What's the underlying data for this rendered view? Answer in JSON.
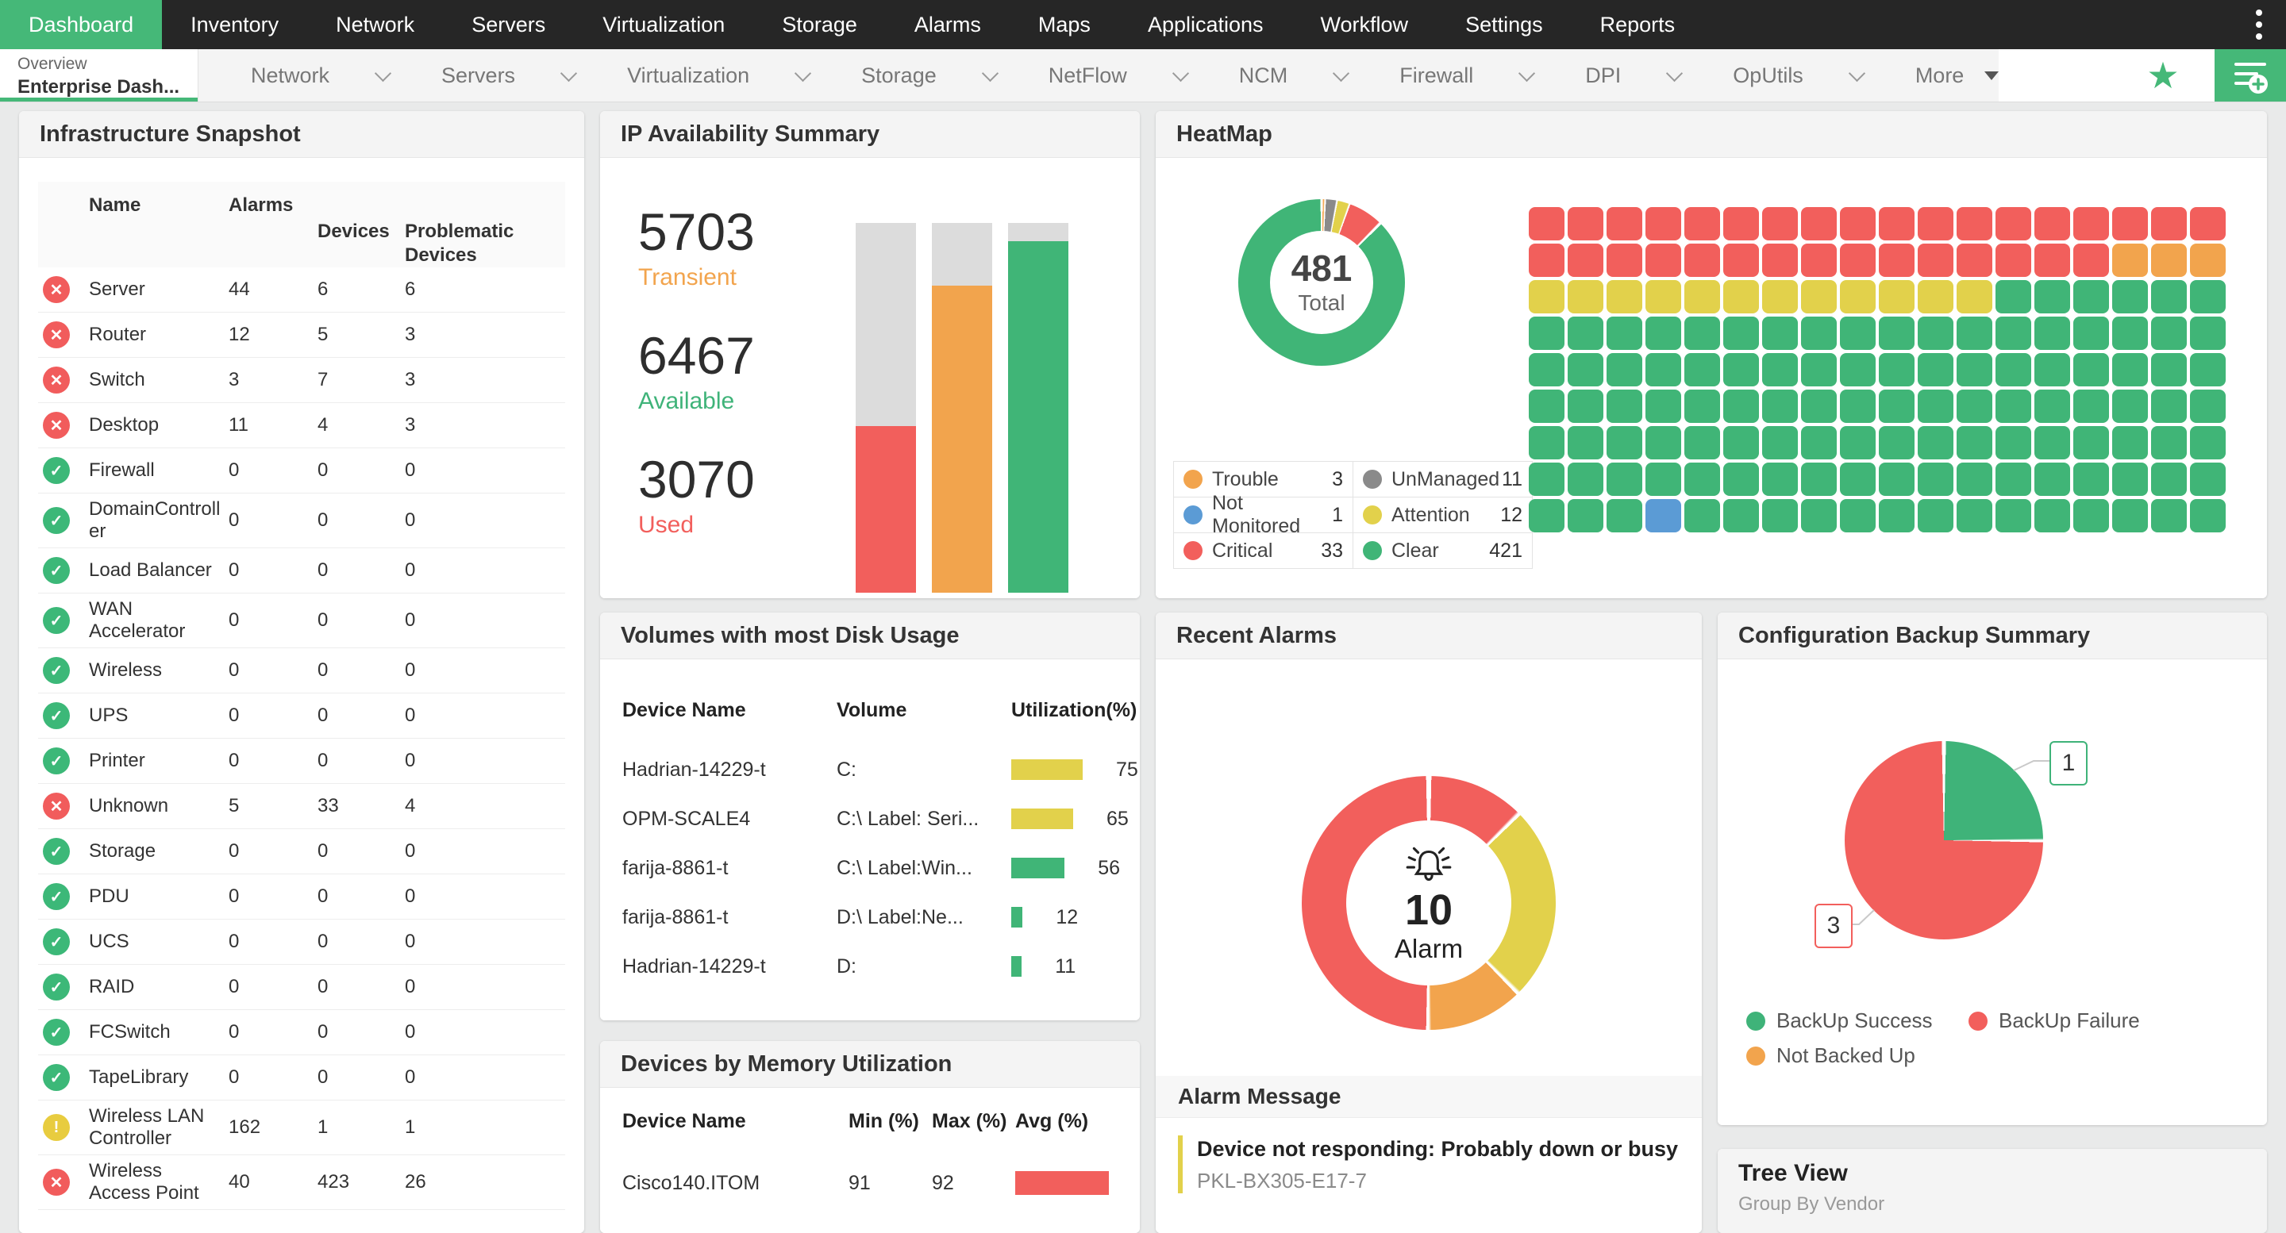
{
  "topnav": {
    "items": [
      {
        "label": "Dashboard",
        "active": true
      },
      {
        "label": "Inventory",
        "active": false
      },
      {
        "label": "Network",
        "active": false
      },
      {
        "label": "Servers",
        "active": false
      },
      {
        "label": "Virtualization",
        "active": false
      },
      {
        "label": "Storage",
        "active": false
      },
      {
        "label": "Alarms",
        "active": false
      },
      {
        "label": "Maps",
        "active": false
      },
      {
        "label": "Applications",
        "active": false
      },
      {
        "label": "Workflow",
        "active": false
      },
      {
        "label": "Settings",
        "active": false
      },
      {
        "label": "Reports",
        "active": false
      }
    ]
  },
  "tabbar": {
    "active_tab": {
      "line1": "Overview",
      "line2": "Enterprise Dash..."
    },
    "tabs": [
      "Network",
      "Servers",
      "Virtualization",
      "Storage",
      "NetFlow",
      "NCM",
      "Firewall",
      "DPI",
      "OpUtils"
    ],
    "more_label": "More",
    "star_color": "#45B878"
  },
  "widgets": {
    "infrastructure": {
      "title": "Infrastructure Snapshot",
      "columns": {
        "name": "Name",
        "alarms": "Alarms",
        "devices": "Devices",
        "problematic": "Problematic Devices"
      },
      "status_colors": {
        "critical": "#F15C5C",
        "clear": "#3CB878",
        "attention": "#E8CC3F"
      },
      "status_glyphs": {
        "critical": "✕",
        "clear": "✓",
        "attention": "!"
      },
      "rows": [
        {
          "status": "critical",
          "name": "Server",
          "alarms": "44",
          "devices": "6",
          "problematic": "6"
        },
        {
          "status": "critical",
          "name": "Router",
          "alarms": "12",
          "devices": "5",
          "problematic": "3"
        },
        {
          "status": "critical",
          "name": "Switch",
          "alarms": "3",
          "devices": "7",
          "problematic": "3"
        },
        {
          "status": "critical",
          "name": "Desktop",
          "alarms": "11",
          "devices": "4",
          "problematic": "3"
        },
        {
          "status": "clear",
          "name": "Firewall",
          "alarms": "0",
          "devices": "0",
          "problematic": "0"
        },
        {
          "status": "clear",
          "name": "DomainController",
          "alarms": "0",
          "devices": "0",
          "problematic": "0"
        },
        {
          "status": "clear",
          "name": "Load Balancer",
          "alarms": "0",
          "devices": "0",
          "problematic": "0"
        },
        {
          "status": "clear",
          "name": "WAN Accelerator",
          "alarms": "0",
          "devices": "0",
          "problematic": "0"
        },
        {
          "status": "clear",
          "name": "Wireless",
          "alarms": "0",
          "devices": "0",
          "problematic": "0"
        },
        {
          "status": "clear",
          "name": "UPS",
          "alarms": "0",
          "devices": "0",
          "problematic": "0"
        },
        {
          "status": "clear",
          "name": "Printer",
          "alarms": "0",
          "devices": "0",
          "problematic": "0"
        },
        {
          "status": "critical",
          "name": "Unknown",
          "alarms": "5",
          "devices": "33",
          "problematic": "4"
        },
        {
          "status": "clear",
          "name": "Storage",
          "alarms": "0",
          "devices": "0",
          "problematic": "0"
        },
        {
          "status": "clear",
          "name": "PDU",
          "alarms": "0",
          "devices": "0",
          "problematic": "0"
        },
        {
          "status": "clear",
          "name": "UCS",
          "alarms": "0",
          "devices": "0",
          "problematic": "0"
        },
        {
          "status": "clear",
          "name": "RAID",
          "alarms": "0",
          "devices": "0",
          "problematic": "0"
        },
        {
          "status": "clear",
          "name": "FCSwitch",
          "alarms": "0",
          "devices": "0",
          "problematic": "0"
        },
        {
          "status": "clear",
          "name": "TapeLibrary",
          "alarms": "0",
          "devices": "0",
          "problematic": "0"
        },
        {
          "status": "attention",
          "name": "Wireless LAN Controller",
          "alarms": "162",
          "devices": "1",
          "problematic": "1"
        },
        {
          "status": "critical",
          "name": "Wireless Access Point",
          "alarms": "40",
          "devices": "423",
          "problematic": "26"
        }
      ]
    },
    "ip_availability": {
      "title": "IP Availability Summary",
      "stats": [
        {
          "value": "5703",
          "label": "Transient",
          "color": "#F2A44D"
        },
        {
          "value": "6467",
          "label": "Available",
          "color": "#3FB379"
        },
        {
          "value": "3070",
          "label": "Used",
          "color": "#F25F5C"
        }
      ],
      "bars": [
        {
          "color": "#F25F5C",
          "fill_pct": 45
        },
        {
          "color": "#F2A44D",
          "fill_pct": 83
        },
        {
          "color": "#40B577",
          "fill_pct": 95
        }
      ],
      "track_color": "#DCDCDC"
    },
    "heatmap": {
      "title": "HeatMap",
      "donut": {
        "total": "481",
        "total_label": "Total",
        "segments": [
          {
            "name": "Trouble",
            "value": 3,
            "color": "#F2A44D"
          },
          {
            "name": "UnManaged",
            "value": 11,
            "color": "#8A8A8A"
          },
          {
            "name": "Attention",
            "value": 12,
            "color": "#E2D14B"
          },
          {
            "name": "Critical",
            "value": 33,
            "color": "#F25F5C"
          },
          {
            "name": "Not Monitored",
            "value": 1,
            "color": "#5B9BD5"
          },
          {
            "name": "Clear",
            "value": 421,
            "color": "#40B577"
          }
        ]
      },
      "legend": [
        {
          "label": "Trouble",
          "value": "3",
          "color": "#F2A44D"
        },
        {
          "label": "UnManaged",
          "value": "11",
          "color": "#8A8A8A"
        },
        {
          "label": "Not Monitored",
          "value": "1",
          "color": "#5B9BD5"
        },
        {
          "label": "Attention",
          "value": "12",
          "color": "#E2D14B"
        },
        {
          "label": "Critical",
          "value": "33",
          "color": "#F25F5C"
        },
        {
          "label": "Clear",
          "value": "421",
          "color": "#40B577"
        }
      ],
      "cell_colors": {
        "C": "#F25F5C",
        "T": "#F2A44D",
        "A": "#E2D14B",
        "G": "#40B577",
        "N": "#5B9BD5"
      },
      "grid_rows": [
        "CCCCCCCCCCCCCCCCCC",
        "CCCCCCCCCCCCCCCTTT",
        "AAAAAAAAAAAAGGGGGG",
        "GGGGGGGGGGGGGGGGGG",
        "GGGGGGGGGGGGGGGGGG",
        "GGGGGGGGGGGGGGGGGG",
        "GGGGGGGGGGGGGGGGGG",
        "GGGGGGGGGGGGGGGGGG",
        "GGGNGGGGGGGGGGGGGG"
      ]
    },
    "volumes": {
      "title": "Volumes with most Disk Usage",
      "columns": {
        "device": "Device Name",
        "volume": "Volume",
        "utilization": "Utilization(%)"
      },
      "rows": [
        {
          "device": "Hadrian-14229-t",
          "volume": "C:",
          "pct": 75,
          "color": "#E2D14B"
        },
        {
          "device": "OPM-SCALE4",
          "volume": "C:\\ Label: Seri...",
          "pct": 65,
          "color": "#E2D14B"
        },
        {
          "device": "farija-8861-t",
          "volume": "C:\\ Label:Win...",
          "pct": 56,
          "color": "#40B577"
        },
        {
          "device": "farija-8861-t",
          "volume": "D:\\ Label:Ne...",
          "pct": 12,
          "color": "#40B577"
        },
        {
          "device": "Hadrian-14229-t",
          "volume": "D:",
          "pct": 11,
          "color": "#40B577"
        }
      ]
    },
    "memory": {
      "title": "Devices by Memory Utilization",
      "columns": {
        "device": "Device Name",
        "min": "Min (%)",
        "max": "Max (%)",
        "avg": "Avg (%)"
      },
      "rows": [
        {
          "device": "Cisco140.ITOM",
          "min": "91",
          "max": "92",
          "avg": 91,
          "bar_color": "#F25F5C"
        }
      ]
    },
    "recent_alarms": {
      "title": "Recent Alarms",
      "donut": {
        "count": "10",
        "count_label": "Alarm",
        "segments": [
          {
            "color": "#F25F5C",
            "deg": 45
          },
          {
            "color": "#E2D14B",
            "deg": 90
          },
          {
            "color": "#F2A44D",
            "deg": 45
          },
          {
            "color": "#F25F5C",
            "deg": 180
          }
        ]
      },
      "message_header": "Alarm Message",
      "alarms": [
        {
          "severity_color": "#E2D14B",
          "message": "Device not responding: Probably down or busy",
          "device": "PKL-BX305-E17-7"
        }
      ]
    },
    "backup": {
      "title": "Configuration Backup Summary",
      "pie": {
        "segments": [
          {
            "label": "BackUp Success",
            "value": 1,
            "color": "#3FB379"
          },
          {
            "label": "BackUp Failure",
            "value": 3,
            "color": "#F25F5C"
          }
        ]
      },
      "callouts": [
        {
          "text": "1",
          "border": "#3FB379"
        },
        {
          "text": "3",
          "border": "#F25F5C"
        }
      ],
      "legend": [
        {
          "label": "BackUp Success",
          "color": "#3FB379"
        },
        {
          "label": "BackUp Failure",
          "color": "#F25F5C"
        },
        {
          "label": "Not Backed Up",
          "color": "#F2A44D"
        }
      ]
    },
    "treeview": {
      "title": "Tree View",
      "subtitle": "Group By Vendor"
    }
  },
  "chart_data": [
    {
      "type": "bar",
      "title": "IP Availability Summary",
      "categories": [
        "Used",
        "Transient",
        "Available"
      ],
      "values": [
        3070,
        5703,
        6467
      ],
      "colors": [
        "#F25F5C",
        "#F2A44D",
        "#40B577"
      ],
      "ylim": [
        0,
        6800
      ]
    },
    {
      "type": "pie",
      "title": "HeatMap status donut",
      "labels": [
        "Trouble",
        "UnManaged",
        "Not Monitored",
        "Attention",
        "Critical",
        "Clear"
      ],
      "values": [
        3,
        11,
        1,
        12,
        33,
        421
      ],
      "center_total": 481
    },
    {
      "type": "heatmap",
      "title": "HeatMap grid",
      "rows": 9,
      "cols": 18,
      "visible_counts": {
        "Critical": 33,
        "Trouble": 3,
        "Attention": 12,
        "Clear": 113,
        "NotMonitored": 1
      }
    },
    {
      "type": "pie",
      "title": "Recent Alarms severity split (percent, approx)",
      "labels": [
        "Critical",
        "Attention",
        "Trouble"
      ],
      "values": [
        62.5,
        25,
        12.5
      ],
      "total_alarms": 10
    },
    {
      "type": "pie",
      "title": "Configuration Backup Summary",
      "labels": [
        "BackUp Success",
        "BackUp Failure",
        "Not Backed Up"
      ],
      "values": [
        1,
        3,
        0
      ]
    },
    {
      "type": "table",
      "title": "Volumes with most Disk Usage",
      "columns": [
        "Device Name",
        "Volume",
        "Utilization(%)"
      ],
      "rows": [
        [
          "Hadrian-14229-t",
          "C:",
          75
        ],
        [
          "OPM-SCALE4",
          "C:\\ Label: Seri...",
          65
        ],
        [
          "farija-8861-t",
          "C:\\ Label:Win...",
          56
        ],
        [
          "farija-8861-t",
          "D:\\ Label:Ne...",
          12
        ],
        [
          "Hadrian-14229-t",
          "D:",
          11
        ]
      ]
    },
    {
      "type": "table",
      "title": "Devices by Memory Utilization",
      "columns": [
        "Device Name",
        "Min (%)",
        "Max (%)",
        "Avg (%)"
      ],
      "rows": [
        [
          "Cisco140.ITOM",
          91,
          92,
          91
        ]
      ]
    }
  ]
}
